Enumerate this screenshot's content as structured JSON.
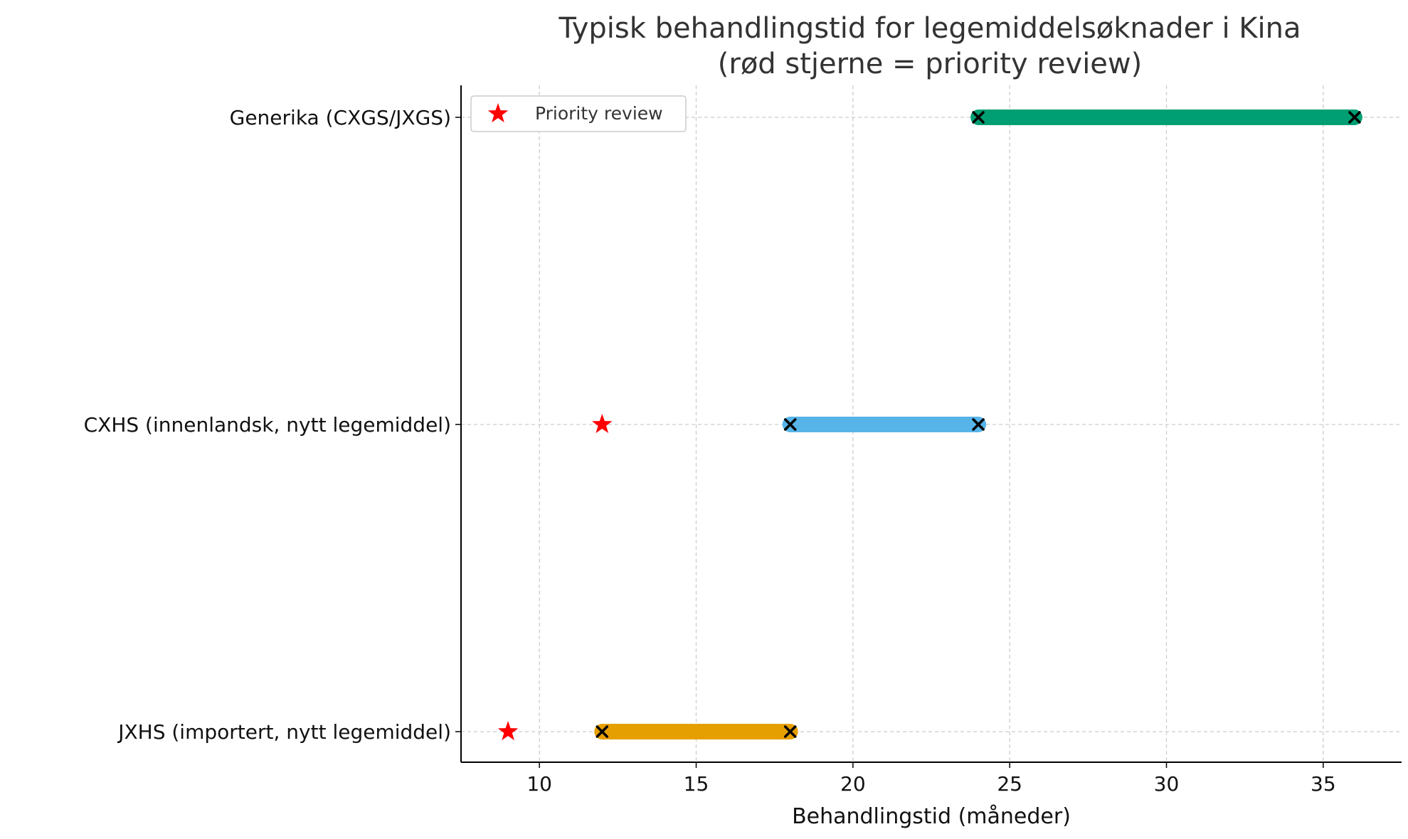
{
  "chart_data": {
    "type": "range",
    "title_lines": [
      "Typisk behandlingstid for legemiddelsøknader i Kina",
      "(rød stjerne = priority review)"
    ],
    "xlabel": "Behandlingstid (måneder)",
    "ylabel": "",
    "xlim": [
      7.5,
      37.5
    ],
    "xticks": [
      10,
      15,
      20,
      25,
      30,
      35
    ],
    "grid": true,
    "legend": {
      "placement": "top-left",
      "entries": [
        {
          "label": "Priority review",
          "marker": "red-star"
        }
      ]
    },
    "categories": [
      "JXHS (importert, nytt legemiddel)",
      "CXHS (innenlandsk, nytt legemiddel)",
      "Generika (CXGS/JXGS)"
    ],
    "ranges": [
      {
        "category": "JXHS (importert, nytt legemiddel)",
        "start": 12,
        "end": 18,
        "color": "#E69F00",
        "priority_review": 9
      },
      {
        "category": "CXHS (innenlandsk, nytt legemiddel)",
        "start": 18,
        "end": 24,
        "color": "#56B4E9",
        "priority_review": 12
      },
      {
        "category": "Generika (CXGS/JXGS)",
        "start": 24,
        "end": 36,
        "color": "#009E73",
        "priority_review": null
      }
    ],
    "colors": {
      "priority_star": "#FF0000",
      "endpoint_marker": "#000000"
    }
  }
}
